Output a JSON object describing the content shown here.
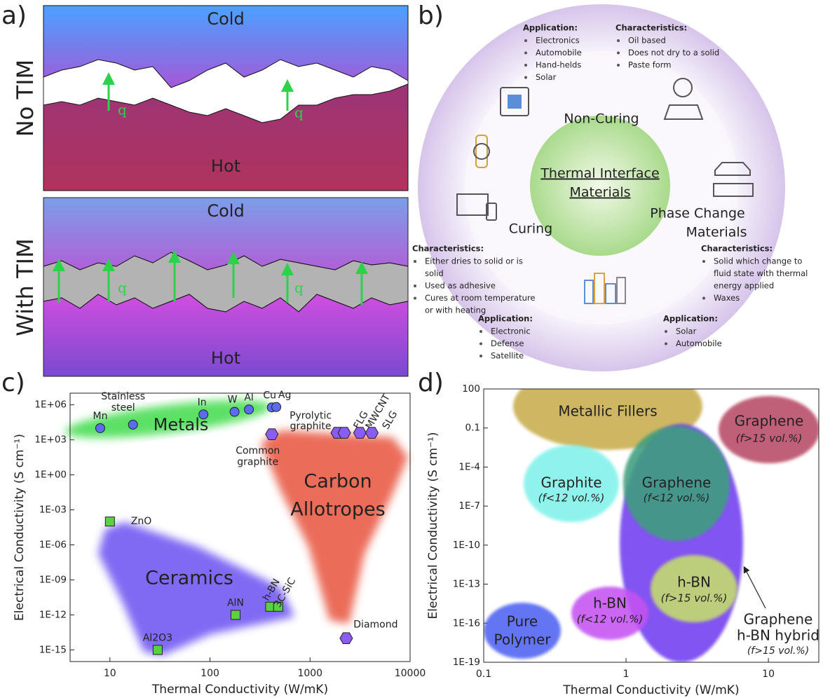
{
  "panel_labels": [
    "a)",
    "b)",
    "c)",
    "d)"
  ],
  "diagram_a": {
    "top": {
      "side_label": "No TIM",
      "cold": "Cold",
      "hot": "Hot",
      "flux_labels": [
        "q",
        "q"
      ]
    },
    "bottom": {
      "side_label": "With TIM",
      "cold": "Cold",
      "hot": "Hot",
      "flux_labels": [
        "q",
        "q"
      ]
    }
  },
  "diagram_b": {
    "center": [
      "Thermal Interface",
      "Materials"
    ],
    "categories": [
      [
        "Non-Curing"
      ],
      [
        "Curing"
      ],
      [
        "Phase Change",
        "Materials"
      ]
    ],
    "blocks": [
      {
        "heading": "Application:",
        "items": [
          [
            "Electronics"
          ],
          [
            "Automobile"
          ],
          [
            "Hand-helds"
          ],
          [
            "Solar"
          ]
        ]
      },
      {
        "heading": "Characteristics:",
        "items": [
          [
            "Oil based"
          ],
          [
            "Does not dry to a solid"
          ],
          [
            "Paste form"
          ]
        ]
      },
      {
        "heading": "Characteristics:",
        "items": [
          [
            "Either dries to solid or is",
            "solid"
          ],
          [
            "Used as adhesive"
          ],
          [
            "Cures at room temperature",
            "or with heating"
          ]
        ]
      },
      {
        "heading": "Application:",
        "items": [
          [
            "Electronic"
          ],
          [
            "Defense"
          ],
          [
            "Satellite"
          ]
        ]
      },
      {
        "heading": "Characteristics:",
        "items": [
          [
            "Solid which change to",
            "fluid state with thermal",
            "energy applied"
          ],
          [
            "Waxes"
          ]
        ]
      },
      {
        "heading": "Application:",
        "items": [
          [
            "Solar"
          ],
          [
            "Automobile"
          ]
        ]
      }
    ]
  },
  "chart_data": [
    {
      "type": "scatter",
      "xlabel": "Thermal Conductivity (W/mK)",
      "ylabel": "Electrical Conductivity (S cm⁻¹)",
      "log_x": true,
      "log_y": true,
      "xlim": [
        4,
        10000
      ],
      "ylim": [
        1e-16,
        10000000.0
      ],
      "xticks": [
        10,
        100,
        1000,
        10000
      ],
      "yticks": [
        {
          "value": 1000000.0,
          "label": "1E+06"
        },
        {
          "value": 1000,
          "label": "1E+03"
        },
        {
          "value": 1,
          "label": "1E+00"
        },
        {
          "value": 0.001,
          "label": "1E-03"
        },
        {
          "value": 1e-06,
          "label": "1E-06"
        },
        {
          "value": 1e-09,
          "label": "1E-09"
        },
        {
          "value": 1e-12,
          "label": "1E-12"
        },
        {
          "value": 1e-15,
          "label": "1E-15"
        }
      ],
      "regions": [
        {
          "label": [
            "Metals"
          ],
          "color": "#3fdc4c"
        },
        {
          "label": [
            "Carbon",
            "Allotropes"
          ],
          "color": "#e8533c"
        },
        {
          "label": [
            "Ceramics"
          ],
          "color": "#6a50f2"
        }
      ],
      "series": [
        {
          "marker": "circle",
          "color": "#5b6cf2",
          "labels": [
            [
              "Mn"
            ],
            [
              "Stainless",
              "steel"
            ],
            [
              "In"
            ],
            [
              "W"
            ],
            [
              "Al"
            ],
            [
              "Cu"
            ],
            [
              "Ag"
            ]
          ],
          "x": [
            8,
            17,
            86,
            176,
            245,
            415,
            460
          ],
          "values": [
            10000,
            20000,
            150000,
            250000,
            400000,
            600000,
            650000
          ]
        },
        {
          "marker": "hexagon",
          "color": "#8b5cf2",
          "labels": [
            [
              "Common",
              "graphite"
            ],
            [
              "Pyrolytic",
              "graphite"
            ],
            [
              "FLG"
            ],
            [
              "MWCNT"
            ],
            [
              "SLG"
            ],
            [
              "Diamond"
            ]
          ],
          "x": [
            415,
            1870,
            2200,
            3150,
            4150,
            2300
          ],
          "values": [
            3000,
            4000,
            4000,
            4000,
            4000,
            1e-14
          ]
        },
        {
          "marker": "square",
          "color": "#5bd043",
          "labels": [
            [
              "ZnO"
            ],
            [
              "AlN"
            ],
            [
              "h-BN"
            ],
            [
              "3C-SiC"
            ],
            [
              "Al2O3"
            ]
          ],
          "x": [
            10,
            180,
            400,
            480,
            30
          ],
          "values": [
            0.0001,
            1e-12,
            5e-12,
            5e-12,
            1e-15
          ]
        }
      ]
    },
    {
      "type": "region",
      "xlabel": "Thermal Conductivity (W/mK)",
      "ylabel": "Electrical Conductivity (S cm⁻¹)",
      "log_x": true,
      "log_y": true,
      "xlim": [
        0.1,
        22.6
      ],
      "ylim": [
        1e-19,
        100
      ],
      "xticks": [
        0.1,
        1,
        10
      ],
      "yticks": [
        100,
        0.1,
        {
          "value": 0.0001,
          "label": "1E-4"
        },
        {
          "value": 1e-07,
          "label": "1E-7"
        },
        {
          "value": 1e-10,
          "label": "1E-10"
        },
        {
          "value": 1e-13,
          "label": "1E-13"
        },
        {
          "value": 1e-16,
          "label": "1E-16"
        },
        {
          "value": 1e-19,
          "label": "1E-19"
        }
      ],
      "regions": [
        {
          "label": [
            "Metallic Fillers"
          ],
          "color": "#c8ad4e"
        },
        {
          "label": [
            "Graphene",
            "(f>15 vol.%)"
          ],
          "color": "#b84a66"
        },
        {
          "label": [
            "Graphite",
            "(f<12 vol.%)"
          ],
          "color": "#80f2ea"
        },
        {
          "label": [
            "Graphene",
            "h-BN hybrid",
            "(f>15 vol.%)"
          ],
          "color": "#7442f0"
        },
        {
          "label": [
            "Graphene",
            "(f<12 vol.%)"
          ],
          "color": "#3d9f7e"
        },
        {
          "label": [
            "h-BN",
            "(f>15 vol.%)"
          ],
          "color": "#c4de6c"
        },
        {
          "label": [
            "h-BN",
            "(f<12 vol.%)"
          ],
          "color": "#c453f2"
        },
        {
          "label": [
            "Pure",
            "Polymer"
          ],
          "color": "#5062f2"
        }
      ]
    }
  ]
}
